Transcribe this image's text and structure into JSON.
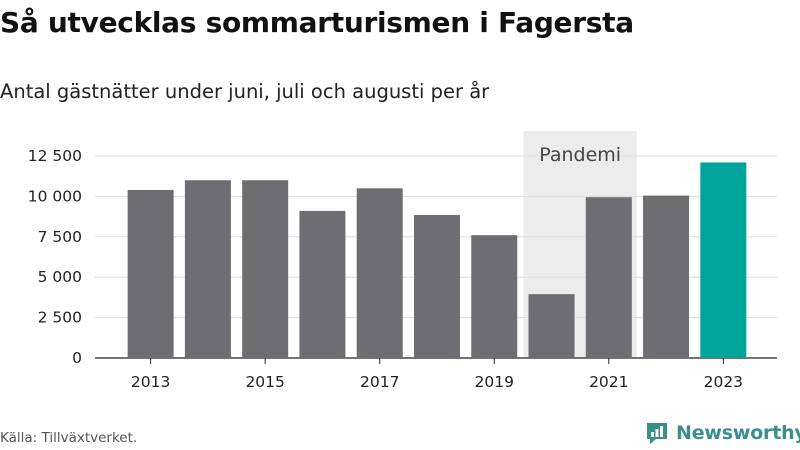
{
  "title": "Så utvecklas sommarturismen i Fagersta",
  "subtitle": "Antal gästnätter under juni, juli och augusti per år",
  "source": "Källa: Tillväxtverket.",
  "brand": {
    "name": "Newsworthy",
    "color": "#3a8f8a"
  },
  "colors": {
    "bar": "#6e6d72",
    "highlight": "#00a49a",
    "shade": "#ececec",
    "grid": "#dddddd"
  },
  "chart_data": {
    "type": "bar",
    "categories": [
      "2013",
      "2014",
      "2015",
      "2016",
      "2017",
      "2018",
      "2019",
      "2020",
      "2021",
      "2022",
      "2023"
    ],
    "values": [
      10400,
      11000,
      11000,
      9100,
      10500,
      8850,
      7600,
      3950,
      9950,
      10050,
      12100
    ],
    "highlight_index": 10,
    "ylim": [
      0,
      12500
    ],
    "yticks": [
      {
        "value": 0,
        "label": "0"
      },
      {
        "value": 2500,
        "label": "2 500"
      },
      {
        "value": 5000,
        "label": "5 000"
      },
      {
        "value": 7500,
        "label": "7 500"
      },
      {
        "value": 10000,
        "label": "10 000"
      },
      {
        "value": 12500,
        "label": "12 500"
      }
    ],
    "xtick_labels": [
      "2013",
      "2015",
      "2017",
      "2019",
      "2021",
      "2023"
    ],
    "annotation": {
      "label": "Pandemi",
      "from": "2020",
      "to": "2021"
    },
    "grid": true,
    "legend": "none"
  }
}
